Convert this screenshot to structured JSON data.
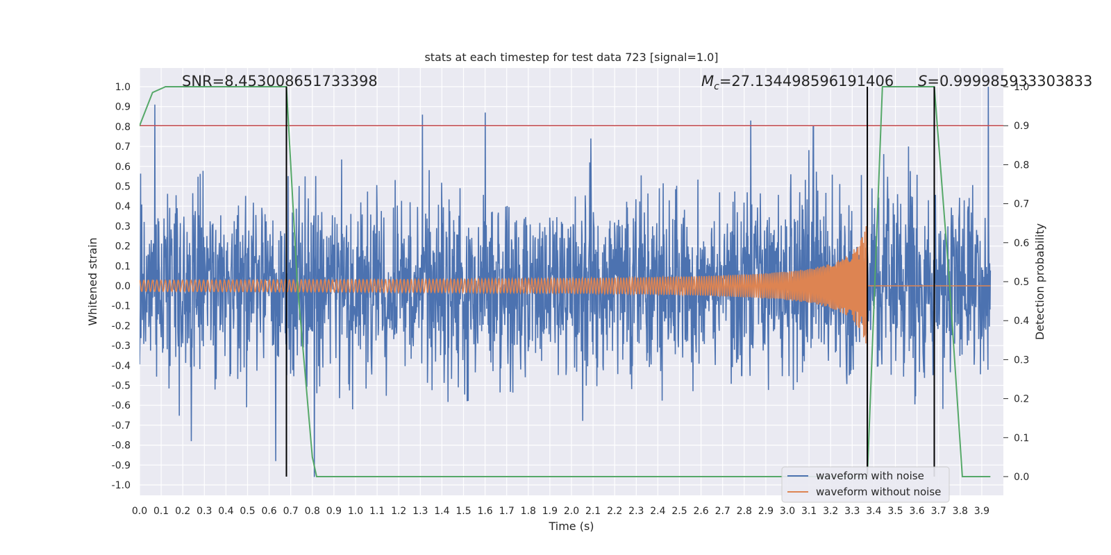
{
  "chart_data": {
    "type": "line",
    "title": "stats at each timestep for test data 723 [signal=1.0]",
    "xlabel": "Time (s)",
    "ylabel": "Whitened strain",
    "y2label": "Detection probability",
    "xlim": [
      0.0,
      4.0
    ],
    "ylim": [
      -1.1,
      1.1
    ],
    "y2lim": [
      -0.05,
      1.0
    ],
    "grid": true,
    "x_ticks": [
      "0.0",
      "0.1",
      "0.2",
      "0.3",
      "0.4",
      "0.5",
      "0.6",
      "0.7",
      "0.8",
      "0.9",
      "1.0",
      "1.1",
      "1.2",
      "1.3",
      "1.4",
      "1.5",
      "1.6",
      "1.7",
      "1.8",
      "1.9",
      "2.0",
      "2.1",
      "2.2",
      "2.3",
      "2.4",
      "2.5",
      "2.6",
      "2.7",
      "2.8",
      "2.9",
      "3.0",
      "3.1",
      "3.2",
      "3.3",
      "3.4",
      "3.5",
      "3.6",
      "3.7",
      "3.8",
      "3.9"
    ],
    "y_ticks": [
      "1.0",
      "0.9",
      "0.8",
      "0.7",
      "0.6",
      "0.5",
      "0.4",
      "0.3",
      "0.2",
      "0.1",
      "0.0",
      "-0.1",
      "-0.2",
      "-0.3",
      "-0.4",
      "-0.5",
      "-0.6",
      "-0.7",
      "-0.8",
      "-0.9",
      "-1.0"
    ],
    "y2_ticks": [
      "1.0",
      "0.9",
      "0.8",
      "0.7",
      "0.6",
      "0.5",
      "0.4",
      "0.3",
      "0.2",
      "0.1",
      "0.0"
    ],
    "annotations": {
      "snr": "SNR=8.453008651733398",
      "mc": "=27.134498596191406",
      "mc_symbol": "M",
      "mc_sub": "c",
      "s": "=0.999985933303833",
      "s_symbol": "S"
    },
    "series": [
      {
        "name": "waveform with noise",
        "color": "#4c72b0",
        "noise_amplitude": 0.25,
        "peak_samples": [
          [
            0.07,
            0.91
          ],
          [
            0.24,
            -0.78
          ],
          [
            0.63,
            -0.88
          ],
          [
            0.81,
            -0.96
          ],
          [
            1.31,
            0.86
          ],
          [
            1.6,
            0.87
          ],
          [
            2.09,
            0.74
          ],
          [
            2.83,
            0.83
          ],
          [
            3.12,
            0.8
          ],
          [
            3.93,
            1.0
          ]
        ]
      },
      {
        "name": "waveform without noise",
        "color": "#dd8452",
        "chirp_start_amplitude": 0.02,
        "chirp_end_amplitude": 0.33,
        "merger_time": 3.37
      }
    ],
    "probability_series": {
      "color": "#55a868",
      "x": [
        0.0,
        0.06,
        0.12,
        0.68,
        0.73,
        0.8,
        0.82,
        3.35,
        3.37,
        3.44,
        3.68,
        3.75,
        3.81,
        3.94
      ],
      "y": [
        0.9,
        0.985,
        1.0,
        1.0,
        0.5,
        0.05,
        0.0,
        0.0,
        0.0,
        1.0,
        1.0,
        0.5,
        0.0,
        0.0
      ]
    },
    "threshold": {
      "value": 0.9,
      "axis": "right",
      "color": "#c44e52"
    },
    "vlines": [
      0.68,
      3.37,
      3.68
    ],
    "legend_position": "bottom-right"
  }
}
